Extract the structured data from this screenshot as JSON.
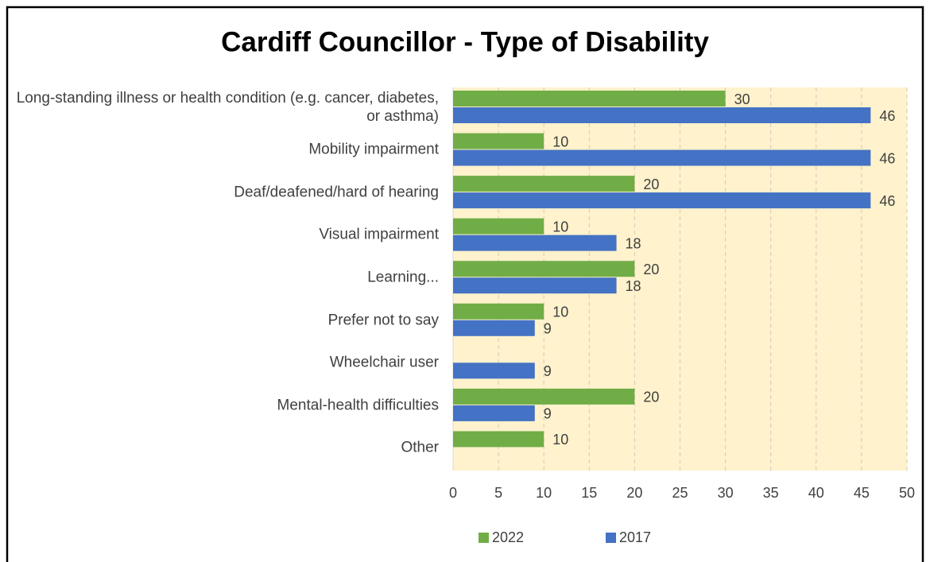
{
  "chart_data": {
    "type": "bar",
    "orientation": "horizontal",
    "title": "Cardiff Councillor - Type of Disability",
    "categories": [
      "Long-standing illness or health condition (e.g. cancer, diabetes, or asthma)",
      "Mobility impairment",
      "Deaf/deafened/hard of hearing",
      "Visual impairment",
      "Learning...",
      "Prefer not to say",
      "Wheelchair user",
      "Mental-health difficulties",
      "Other"
    ],
    "series": [
      {
        "name": "2022",
        "color": "#70ad47",
        "values": [
          30,
          10,
          20,
          10,
          20,
          10,
          null,
          20,
          10
        ]
      },
      {
        "name": "2017",
        "color": "#4472c4",
        "values": [
          46,
          46,
          46,
          18,
          18,
          9,
          9,
          9,
          null
        ]
      }
    ],
    "xlim": [
      0,
      50
    ],
    "xticks": [
      0,
      5,
      10,
      15,
      20,
      25,
      30,
      35,
      40,
      45,
      50
    ],
    "grid": true,
    "legend": "bottom",
    "plot_background": "#fff2cc"
  }
}
